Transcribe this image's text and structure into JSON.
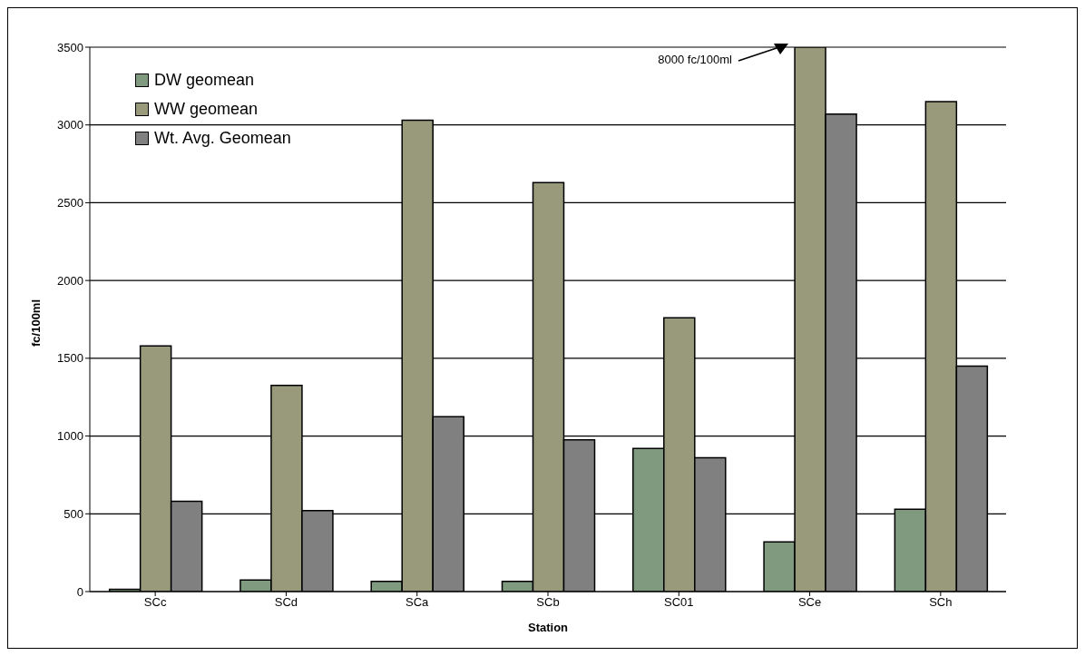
{
  "chart_data": {
    "type": "bar",
    "xlabel": "Station",
    "ylabel": "fc/100ml",
    "categories": [
      "SCc",
      "SCd",
      "SCa",
      "SCb",
      "SC01",
      "SCe",
      "SCh"
    ],
    "series": [
      {
        "name": "DW geomean",
        "color": "#7f9a7e",
        "values": [
          15,
          75,
          65,
          65,
          920,
          320,
          530
        ]
      },
      {
        "name": "WW geomean",
        "color": "#99997c",
        "values": [
          1580,
          1325,
          3030,
          2630,
          1760,
          3500,
          3150
        ]
      },
      {
        "name": "Wt. Avg. Geomean",
        "color": "#808080",
        "values": [
          580,
          520,
          1125,
          975,
          860,
          3070,
          1450
        ]
      }
    ],
    "ylim": [
      0,
      3500
    ],
    "yticks": [
      0,
      500,
      1000,
      1500,
      2000,
      2500,
      3000,
      3500
    ],
    "grid": "y",
    "legend": "top left",
    "annotations": [
      "8000 fc/100ml"
    ]
  }
}
